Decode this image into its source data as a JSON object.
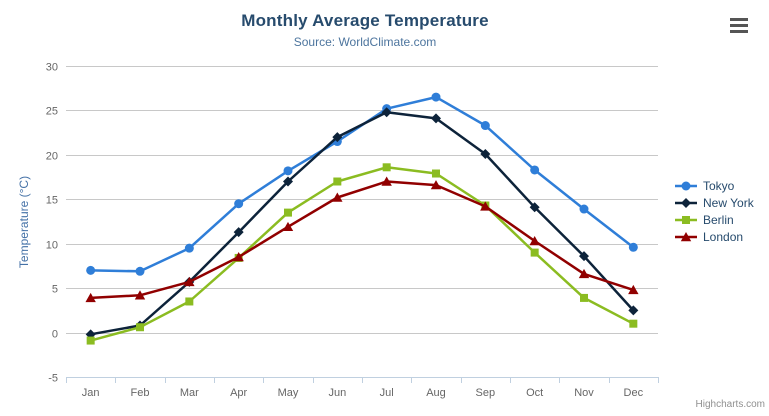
{
  "chart_data": {
    "type": "line",
    "title": "Monthly Average Temperature",
    "subtitle": "Source: WorldClimate.com",
    "xlabel": "",
    "ylabel": "Temperature (°C)",
    "ylim": [
      -5,
      30
    ],
    "yticks": [
      -5,
      0,
      5,
      10,
      15,
      20,
      25,
      30
    ],
    "grid": true,
    "legend_position": "right",
    "categories": [
      "Jan",
      "Feb",
      "Mar",
      "Apr",
      "May",
      "Jun",
      "Jul",
      "Aug",
      "Sep",
      "Oct",
      "Nov",
      "Dec"
    ],
    "series": [
      {
        "name": "Tokyo",
        "color": "#2f7ed8",
        "marker": "circle",
        "values": [
          7.0,
          6.9,
          9.5,
          14.5,
          18.2,
          21.5,
          25.2,
          26.5,
          23.3,
          18.3,
          13.9,
          9.6
        ]
      },
      {
        "name": "New York",
        "color": "#0d233a",
        "marker": "diamond",
        "values": [
          -0.2,
          0.8,
          5.7,
          11.3,
          17.0,
          22.0,
          24.8,
          24.1,
          20.1,
          14.1,
          8.6,
          2.5
        ]
      },
      {
        "name": "Berlin",
        "color": "#8bbc21",
        "marker": "square",
        "values": [
          -0.9,
          0.6,
          3.5,
          8.4,
          13.5,
          17.0,
          18.6,
          17.9,
          14.3,
          9.0,
          3.9,
          1.0
        ]
      },
      {
        "name": "London",
        "color": "#910000",
        "marker": "triangle",
        "values": [
          3.9,
          4.2,
          5.7,
          8.5,
          11.9,
          15.2,
          17.0,
          16.6,
          14.2,
          10.3,
          6.6,
          4.8
        ]
      }
    ],
    "style": {
      "title_color": "#274b6d",
      "subtitle_color": "#4d759e",
      "axis_label_color": "#666666",
      "axis_title_color": "#4572a7",
      "gridline_color": "#c8c8c8",
      "xaxis_line_color": "#c0d0e0",
      "legend_text_color": "#274b6d"
    }
  },
  "credits": {
    "label": "Highcharts.com"
  },
  "context_menu": {
    "icon": "hamburger-menu-icon"
  }
}
